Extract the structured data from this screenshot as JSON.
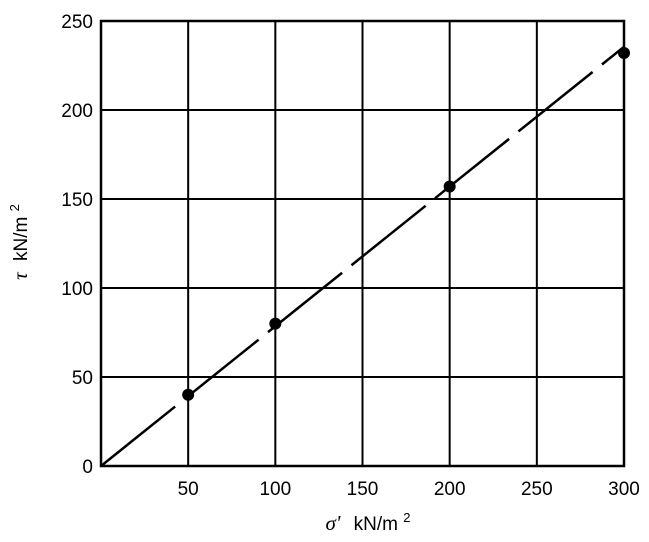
{
  "chart_data": {
    "type": "scatter",
    "title": "",
    "xlabel_symbol": "σ'",
    "xlabel_unit": "kN/m",
    "ylabel_symbol": "τ",
    "ylabel_unit": "kN/m",
    "unit_exponent": "2",
    "xlim": [
      0,
      300
    ],
    "ylim": [
      0,
      250
    ],
    "x_ticks": [
      50,
      100,
      150,
      200,
      250,
      300
    ],
    "y_ticks": [
      0,
      50,
      100,
      150,
      200,
      250
    ],
    "grid": true,
    "series": [
      {
        "points": [
          {
            "x": 50,
            "y": 40
          },
          {
            "x": 100,
            "y": 80
          },
          {
            "x": 200,
            "y": 157
          },
          {
            "x": 300,
            "y": 232
          }
        ]
      }
    ],
    "fit_line": {
      "slope": 0.785,
      "intercept": 0,
      "x_range": [
        0,
        300
      ],
      "style": "dashed"
    },
    "colors": {
      "ink": "#000000",
      "background": "#ffffff"
    }
  }
}
